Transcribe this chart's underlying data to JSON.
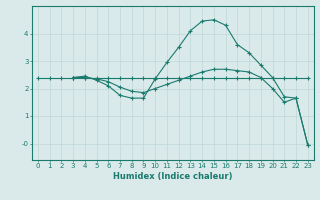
{
  "background_color": "#daeaea",
  "grid_color": "#bfd8d8",
  "line_color": "#1a7a6e",
  "xlabel": "Humidex (Indice chaleur)",
  "xlim": [
    -0.5,
    23.5
  ],
  "ylim": [
    -0.6,
    5.0
  ],
  "yticks": [
    0,
    1,
    2,
    3,
    4
  ],
  "ytick_labels": [
    "-0",
    "1",
    "2",
    "3",
    "4"
  ],
  "xticks": [
    0,
    1,
    2,
    3,
    4,
    5,
    6,
    7,
    8,
    9,
    10,
    11,
    12,
    13,
    14,
    15,
    16,
    17,
    18,
    19,
    20,
    21,
    22,
    23
  ],
  "line1_x": [
    0,
    1,
    2,
    3,
    4,
    5,
    6,
    7,
    8,
    9,
    10,
    11,
    12,
    13,
    14,
    15,
    16,
    17,
    18,
    19,
    20,
    21,
    22,
    23
  ],
  "line1_y": [
    2.4,
    2.4,
    2.4,
    2.4,
    2.4,
    2.4,
    2.4,
    2.4,
    2.4,
    2.4,
    2.4,
    2.4,
    2.4,
    2.4,
    2.4,
    2.4,
    2.4,
    2.4,
    2.4,
    2.4,
    2.4,
    2.4,
    2.4,
    2.4
  ],
  "line2_x": [
    3,
    4,
    5,
    6,
    7,
    8,
    9,
    10,
    11,
    12,
    13,
    14,
    15,
    16,
    17,
    18,
    19,
    20,
    21,
    22,
    23
  ],
  "line2_y": [
    2.4,
    2.45,
    2.3,
    2.1,
    1.75,
    1.65,
    1.65,
    2.35,
    2.95,
    3.5,
    4.1,
    4.45,
    4.5,
    4.3,
    3.6,
    3.3,
    2.85,
    2.4,
    1.7,
    1.65,
    -0.05
  ],
  "line3_x": [
    3,
    4,
    5,
    6,
    7,
    8,
    9,
    10,
    11,
    12,
    13,
    14,
    15,
    16,
    17,
    18,
    19,
    20,
    21,
    22,
    23
  ],
  "line3_y": [
    2.4,
    2.4,
    2.35,
    2.25,
    2.05,
    1.9,
    1.85,
    2.0,
    2.15,
    2.3,
    2.45,
    2.6,
    2.7,
    2.7,
    2.65,
    2.6,
    2.4,
    2.0,
    1.5,
    1.65,
    -0.05
  ],
  "tick_fontsize": 5.0,
  "xlabel_fontsize": 6.0
}
